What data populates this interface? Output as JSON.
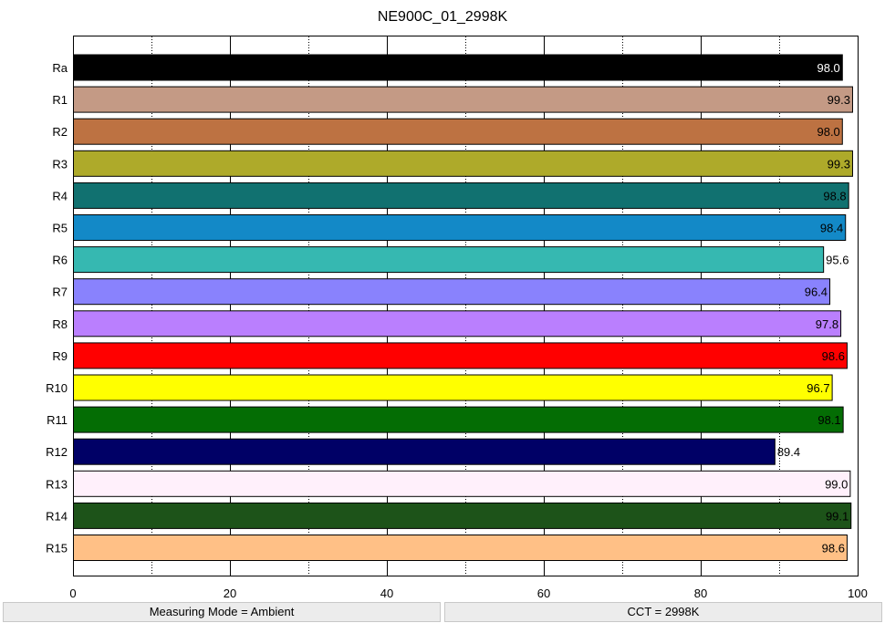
{
  "chart_data": {
    "type": "bar",
    "orientation": "horizontal",
    "title": "NE900C_01_2998K",
    "xlim": [
      0,
      100
    ],
    "x_ticks": [
      0,
      20,
      40,
      60,
      80,
      100
    ],
    "x_tick_labels": [
      "0",
      "20",
      "40",
      "60",
      "80",
      "100"
    ],
    "grid": "vertical dotted at every 10, solid at every 20",
    "categories": [
      "Ra",
      "R1",
      "R2",
      "R3",
      "R4",
      "R5",
      "R6",
      "R7",
      "R8",
      "R9",
      "R10",
      "R11",
      "R12",
      "R13",
      "R14",
      "R15"
    ],
    "values": [
      98.0,
      99.3,
      98.0,
      99.3,
      98.8,
      98.4,
      95.6,
      96.4,
      97.8,
      98.6,
      96.7,
      98.1,
      89.4,
      99.0,
      99.1,
      98.6
    ],
    "value_labels": [
      "98.0",
      "99.3",
      "98.0",
      "99.3",
      "98.8",
      "98.4",
      "95.6",
      "96.4",
      "97.8",
      "98.6",
      "96.7",
      "98.1",
      "89.4",
      "99.0",
      "99.1",
      "98.6"
    ],
    "colors": [
      "#000000",
      "#c49a85",
      "#bd7242",
      "#aeaa2a",
      "#117170",
      "#1389c7",
      "#36b8b1",
      "#8982fd",
      "#ba7ffe",
      "#ff0000",
      "#ffff00",
      "#046d04",
      "#000066",
      "#fff0fb",
      "#1d5319",
      "#ffc086"
    ],
    "label_colors": [
      "#ffffff",
      "#000000",
      "#000000",
      "#000000",
      "#000000",
      "#000000",
      "#000000",
      "#000000",
      "#000000",
      "#000000",
      "#000000",
      "#000000",
      "#000000",
      "#000000",
      "#000000",
      "#000000"
    ],
    "value_label_position": [
      "inside",
      "inside",
      "inside",
      "inside",
      "inside",
      "inside",
      "outside",
      "inside",
      "inside",
      "inside",
      "inside",
      "inside",
      "outside",
      "inside",
      "inside",
      "inside"
    ]
  },
  "status": {
    "measuring_mode": "Measuring Mode = Ambient",
    "cct": "CCT = 2998K"
  }
}
